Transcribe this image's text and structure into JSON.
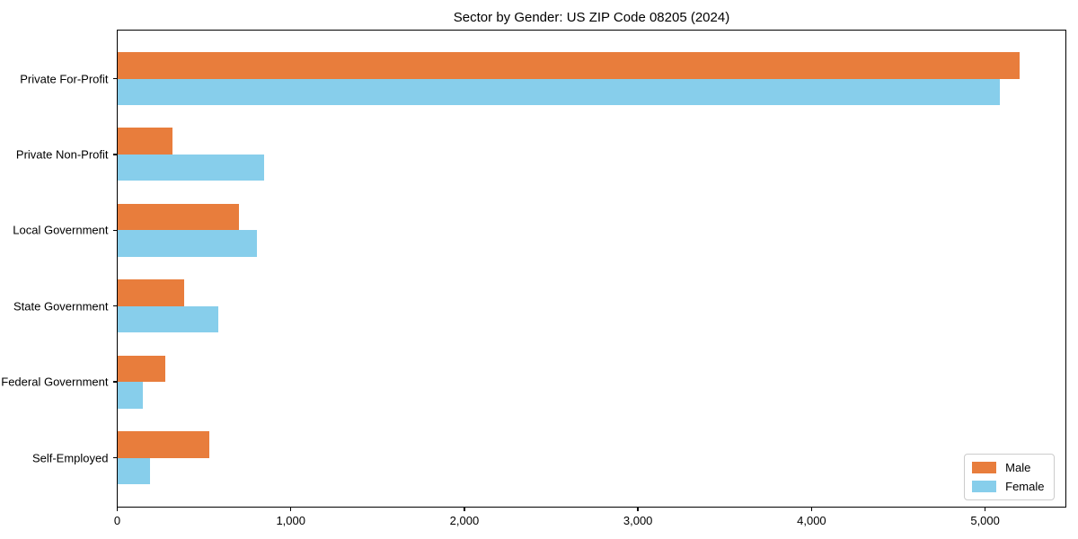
{
  "title": "Sector by Gender: US ZIP Code 08205 (2024)",
  "chart_data": {
    "type": "bar",
    "orientation": "horizontal",
    "title": "Sector by Gender: US ZIP Code 08205 (2024)",
    "categories": [
      "Private For-Profit",
      "Private Non-Profit",
      "Local Government",
      "State Government",
      "Federal Government",
      "Self-Employed"
    ],
    "series": [
      {
        "name": "Male",
        "color": "#e87d3c",
        "values": [
          5200,
          320,
          700,
          385,
          275,
          530
        ]
      },
      {
        "name": "Female",
        "color": "#87ceeb",
        "values": [
          5085,
          845,
          805,
          580,
          150,
          190
        ]
      }
    ],
    "xlabel": "",
    "ylabel": "",
    "xlim": [
      0,
      5460
    ],
    "xticks": [
      0,
      1000,
      2000,
      3000,
      4000,
      5000
    ],
    "xtick_labels": [
      "0",
      "1,000",
      "2,000",
      "3,000",
      "4,000",
      "5,000"
    ],
    "grid": false,
    "legend": {
      "position": "lower right"
    }
  }
}
